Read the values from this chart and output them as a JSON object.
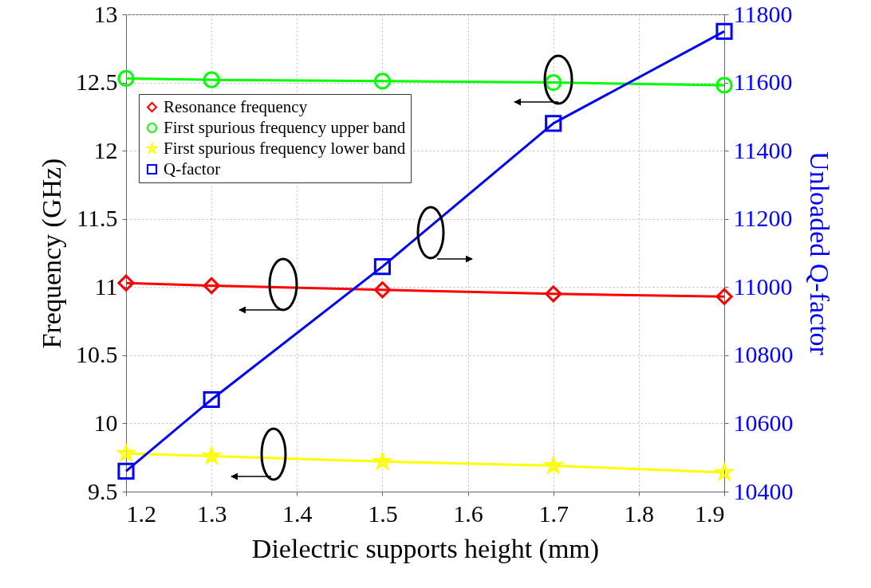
{
  "chart_data": {
    "type": "line",
    "xlabel": "Dielectric supports height (mm)",
    "ylabel": "Frequency (GHz)",
    "y2label": "Unloaded Q-factor",
    "x": [
      1.2,
      1.3,
      1.5,
      1.7,
      1.9
    ],
    "series": [
      {
        "name": "Resonance frequency",
        "color": "#ff0000",
        "marker": "diamond",
        "values": [
          11.03,
          11.01,
          10.98,
          10.95,
          10.93
        ]
      },
      {
        "name": "First spurious frequency upper band",
        "color": "#00ff00",
        "marker": "circle",
        "values": [
          12.53,
          12.52,
          12.51,
          12.5,
          12.48
        ]
      },
      {
        "name": "First spurious frequency lower band",
        "color": "#ffff00",
        "marker": "star",
        "values": [
          9.78,
          9.76,
          9.72,
          9.69,
          9.64
        ]
      },
      {
        "name": "Q-factor",
        "color": "#0000ff",
        "marker": "square",
        "axis": "y2",
        "values": [
          10460,
          10670,
          11060,
          11480,
          11750
        ]
      }
    ],
    "xlim": [
      1.2,
      1.9
    ],
    "xticks": [
      1.2,
      1.3,
      1.4,
      1.5,
      1.6,
      1.7,
      1.8,
      1.9
    ],
    "ylim": [
      9.5,
      13
    ],
    "yticks": [
      9.5,
      10,
      10.5,
      11,
      11.5,
      12,
      12.5,
      13
    ],
    "y2lim": [
      10400,
      11800
    ],
    "y2ticks": [
      10400,
      10600,
      10800,
      11000,
      11200,
      11400,
      11600,
      11800
    ],
    "grid": true,
    "legend": "top left",
    "line_style": "solid"
  }
}
